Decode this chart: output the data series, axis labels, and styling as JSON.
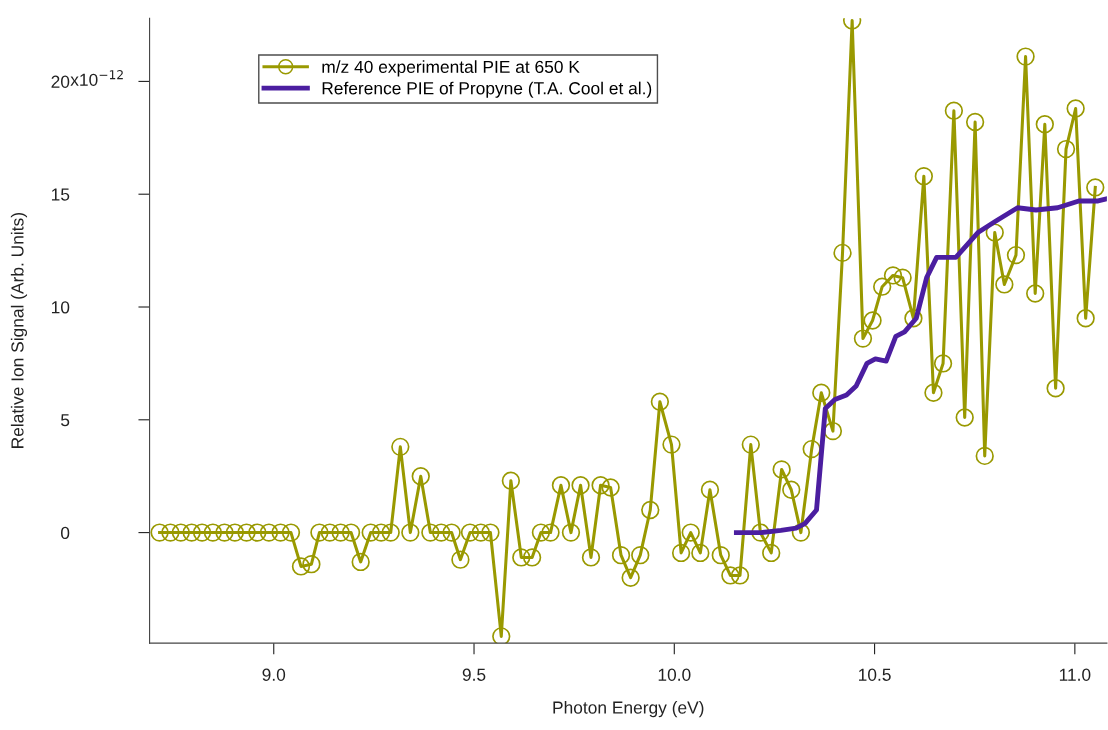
{
  "chart_data": {
    "type": "line",
    "xlabel": "Photon Energy (eV)",
    "ylabel": "Relative Ion Signal (Arb. Units)",
    "annotations": [
      "x10$^{−12}$"
    ],
    "xlim": [
      8.69,
      11.08
    ],
    "xticks": [
      {
        "value": 9,
        "label": "9.0"
      },
      9.5,
      {
        "value": 10,
        "label": "10.0"
      },
      10.5,
      {
        "value": 11,
        "label": "11.0"
      }
    ],
    "ylim": [
      -4.9,
      22.8
    ],
    "yticks": [
      0,
      5,
      10,
      15,
      20
    ],
    "grid": false,
    "legend": "top left",
    "series": [
      {
        "name": "m/z 40 experimental PIE at 650 K",
        "color": "#999900",
        "marker": "circle",
        "line_style": "solid",
        "x": [
          8.715,
          8.742,
          8.768,
          8.795,
          8.821,
          8.848,
          8.877,
          8.903,
          8.932,
          8.959,
          8.988,
          9.017,
          9.043,
          9.068,
          9.094,
          9.114,
          9.14,
          9.167,
          9.193,
          9.217,
          9.242,
          9.268,
          9.292,
          9.316,
          9.341,
          9.367,
          9.391,
          9.418,
          9.444,
          9.466,
          9.49,
          9.517,
          9.541,
          9.568,
          9.592,
          9.618,
          9.645,
          9.667,
          9.691,
          9.717,
          9.742,
          9.766,
          9.792,
          9.816,
          9.841,
          9.867,
          9.891,
          9.915,
          9.94,
          9.964,
          9.993,
          10.017,
          10.041,
          10.065,
          10.089,
          10.116,
          10.14,
          10.164,
          10.191,
          10.215,
          10.242,
          10.268,
          10.292,
          10.316,
          10.343,
          10.367,
          10.396,
          10.42,
          10.444,
          10.471,
          10.495,
          10.519,
          10.546,
          10.57,
          10.597,
          10.623,
          10.647,
          10.671,
          10.698,
          10.725,
          10.751,
          10.775,
          10.8,
          10.824,
          10.853,
          10.877,
          10.901,
          10.925,
          10.952,
          10.978,
          11.002,
          11.027,
          11.051
        ],
        "values": [
          0,
          0,
          0,
          0,
          0,
          0,
          0,
          0,
          0,
          0,
          0,
          0,
          0,
          -1.5,
          -1.4,
          0,
          0,
          0,
          0,
          -1.3,
          0,
          0,
          0,
          3.8,
          0,
          2.5,
          0,
          0,
          0,
          -1.2,
          0,
          0,
          0,
          -4.6,
          2.3,
          -1.1,
          -1.1,
          0,
          0,
          2.1,
          0,
          2.1,
          -1.1,
          2.1,
          2.0,
          -1.0,
          -2.0,
          -1.0,
          1.0,
          5.8,
          3.9,
          -0.9,
          0,
          -0.9,
          1.9,
          -1.0,
          -1.9,
          -1.9,
          3.9,
          0,
          -0.9,
          2.8,
          1.9,
          0,
          3.7,
          6.2,
          4.5,
          12.4,
          22.7,
          8.6,
          9.4,
          10.9,
          11.4,
          11.3,
          9.5,
          15.8,
          6.2,
          7.5,
          18.7,
          5.1,
          18.2,
          3.4,
          13.3,
          11.0,
          12.3,
          21.1,
          10.6,
          18.1,
          6.4,
          17.0,
          18.8,
          9.5,
          15.3
        ]
      },
      {
        "name": "Reference PIE of Propyne (T.A. Cool et al.)",
        "color": "#4b1ea0",
        "marker": "none",
        "line_style": "solid",
        "x": [
          10.155,
          10.217,
          10.266,
          10.304,
          10.326,
          10.355,
          10.377,
          10.401,
          10.43,
          10.454,
          10.481,
          10.502,
          10.529,
          10.553,
          10.575,
          10.604,
          10.63,
          10.655,
          10.703,
          10.758,
          10.802,
          10.857,
          10.903,
          10.957,
          11.01,
          11.058,
          11.08
        ],
        "values": [
          0.0,
          0.0,
          0.1,
          0.2,
          0.4,
          1.0,
          5.5,
          5.9,
          6.1,
          6.5,
          7.5,
          7.7,
          7.6,
          8.7,
          8.9,
          9.5,
          11.3,
          12.2,
          12.2,
          13.3,
          13.8,
          14.4,
          14.3,
          14.4,
          14.7,
          14.7,
          14.8
        ]
      }
    ]
  }
}
